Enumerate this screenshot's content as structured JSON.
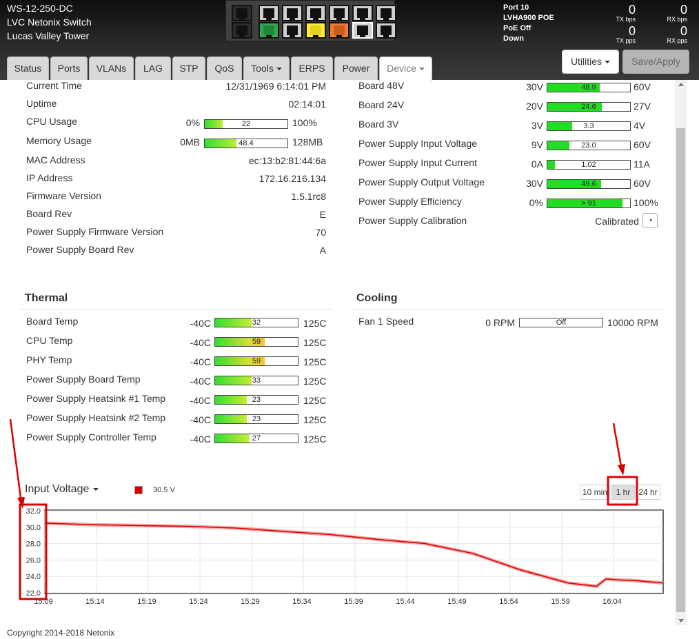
{
  "device": {
    "line1": "WS-12-250-DC",
    "line2": "LVC Netonix Switch",
    "line3": "Lucas Valley Tower"
  },
  "port_info": {
    "port": "Port 10",
    "model": "LVHA900 POE",
    "poe": "PoE Off",
    "status": "Down"
  },
  "stats": {
    "tx_bps": {
      "value": "0",
      "label": "TX bps"
    },
    "rx_bps": {
      "value": "0",
      "label": "RX bps"
    },
    "tx_pps": {
      "value": "0",
      "label": "TX pps"
    },
    "rx_pps": {
      "value": "0",
      "label": "RX pps"
    }
  },
  "ports": {
    "top": [
      "off",
      "off",
      "off",
      "off",
      "off",
      "off",
      "off"
    ],
    "bottom": [
      "off",
      "green",
      "off",
      "yellow",
      "orange",
      "off",
      "off"
    ],
    "colors": {
      "off": "#2c2c2c",
      "green": "#2fa84f",
      "yellow": "#ffee33",
      "orange": "#ef7a33",
      "light": "#cfcfcf"
    }
  },
  "toolbar": {
    "utilities_label": "Utilities",
    "save_label": "Save/Apply"
  },
  "tabs": [
    "Status",
    "Ports",
    "VLANs",
    "LAG",
    "STP",
    "QoS",
    "Tools",
    "ERPS",
    "Power",
    "Device"
  ],
  "device_info": [
    {
      "label": "Current Time",
      "value": "12/31/1969 6:14:01 PM"
    },
    {
      "label": "Uptime",
      "value": "02:14:01"
    },
    {
      "label": "CPU Usage",
      "min": "0%",
      "max": "100%",
      "bar": "22",
      "fraction": 0.22
    },
    {
      "label": "Memory Usage",
      "min": "0MB",
      "max": "128MB",
      "bar": "48.4",
      "fraction": 0.38
    },
    {
      "label": "MAC Address",
      "value": "ec:13:b2:81:44:6a"
    },
    {
      "label": "IP Address",
      "value": "172.16.216.134"
    },
    {
      "label": "Firmware Version",
      "value": "1.5.1rc8"
    },
    {
      "label": "Board Rev",
      "value": "E"
    },
    {
      "label": "Power Supply Firmware Version",
      "value": "70"
    },
    {
      "label": "Power Supply Board Rev",
      "value": "A"
    }
  ],
  "power_info": [
    {
      "label": "Board 48V",
      "min": "30V",
      "max": "60V",
      "bar": "48.9",
      "fraction": 0.63
    },
    {
      "label": "Board 24V",
      "min": "20V",
      "max": "27V",
      "bar": "24.6",
      "fraction": 0.66
    },
    {
      "label": "Board 3V",
      "min": "3V",
      "max": "4V",
      "bar": "3.3",
      "fraction": 0.3
    },
    {
      "label": "Power Supply Input Voltage",
      "min": "9V",
      "max": "60V",
      "bar": "23.0",
      "fraction": 0.27
    },
    {
      "label": "Power Supply Input Current",
      "min": "0A",
      "max": "11A",
      "bar": "1.02",
      "fraction": 0.09
    },
    {
      "label": "Power Supply Output Voltage",
      "min": "30V",
      "max": "60V",
      "bar": "49.6",
      "fraction": 0.65
    },
    {
      "label": "Power Supply Efficiency",
      "min": "0%",
      "max": "100%",
      "bar": "> 91",
      "fraction": 0.91
    },
    {
      "label": "Power Supply Calibration",
      "value": "Calibrated"
    }
  ],
  "thermal": {
    "title": "Thermal",
    "min": "-40C",
    "max": "125C",
    "items": [
      {
        "label": "Board Temp",
        "bar": "32",
        "fraction": 0.44,
        "color": "green"
      },
      {
        "label": "CPU Temp",
        "bar": "59",
        "fraction": 0.6,
        "color": "yellow"
      },
      {
        "label": "PHY Temp",
        "bar": "59",
        "fraction": 0.6,
        "color": "yellow"
      },
      {
        "label": "Power Supply Board Temp",
        "bar": "33",
        "fraction": 0.44,
        "color": "green"
      },
      {
        "label": "Power Supply Heatsink #1 Temp",
        "bar": "23",
        "fraction": 0.38,
        "color": "green"
      },
      {
        "label": "Power Supply Heatsink #2 Temp",
        "bar": "23",
        "fraction": 0.38,
        "color": "green"
      },
      {
        "label": "Power Supply Controller Temp",
        "bar": "27",
        "fraction": 0.41,
        "color": "green"
      }
    ]
  },
  "cooling": {
    "title": "Cooling",
    "items": [
      {
        "label": "Fan 1 Speed",
        "min": "0 RPM",
        "max": "10000 RPM",
        "bar": "Off",
        "fraction": 0
      }
    ]
  },
  "chart_header": {
    "title": "Input Voltage",
    "legend_value": "30.5 V",
    "legend_color": "#dd0000"
  },
  "ranges": [
    {
      "label": "10 min",
      "active": false
    },
    {
      "label": "1 hr",
      "active": true
    },
    {
      "label": "24 hr",
      "active": false
    }
  ],
  "chart_data": {
    "type": "line",
    "title": "Input Voltage",
    "xlabel": "",
    "ylabel": "",
    "ylim": [
      22.0,
      32.0
    ],
    "yticks": [
      "32.0",
      "30.0",
      "28.0",
      "26.0",
      "24.0",
      "22.0"
    ],
    "xticks": [
      "15:09",
      "15:14",
      "15:19",
      "15:24",
      "15:29",
      "15:34",
      "15:39",
      "15:44",
      "15:49",
      "15:54",
      "15:59",
      "16:04"
    ],
    "grid": true,
    "series": [
      {
        "color": "#dd0000",
        "x": [
          0,
          5,
          10,
          15,
          20,
          25,
          30,
          35,
          40,
          45,
          50,
          55,
          58,
          59,
          60,
          62,
          65
        ],
        "y": [
          30.5,
          30.3,
          30.2,
          30.1,
          29.9,
          29.5,
          29.1,
          28.5,
          28.0,
          26.8,
          24.8,
          23.2,
          22.8,
          23.7,
          23.6,
          23.5,
          23.2
        ]
      }
    ]
  },
  "annotation_color": "#dd0000",
  "footer": {
    "copyright": "Copyright 2014-2018 Netonix"
  }
}
